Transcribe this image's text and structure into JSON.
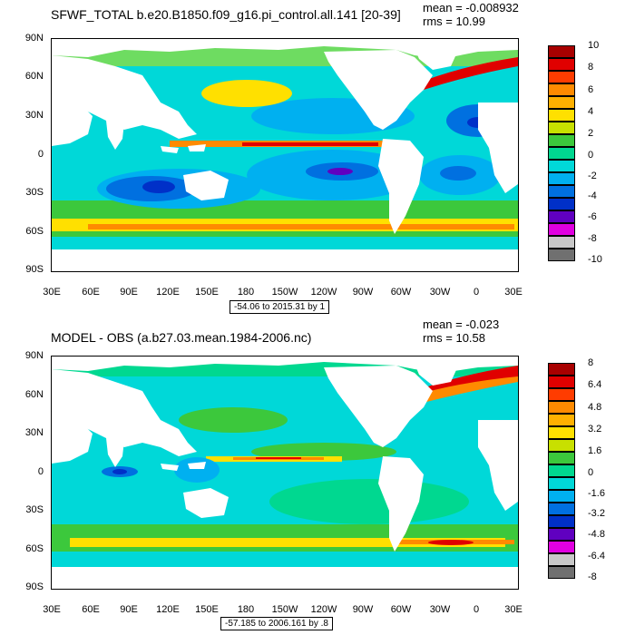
{
  "panels": [
    {
      "title": "SFWF_TOTAL b.e20.B1850.f09_g16.pi_control.all.141 [20-39]",
      "mean": "mean = -0.008932",
      "rms": "rms = 10.99",
      "range": "-54.06 to 2015.31 by 1",
      "lat_labels": [
        "90N",
        "60N",
        "30N",
        "0",
        "30S",
        "60S",
        "90S"
      ],
      "lon_labels": [
        "30E",
        "60E",
        "90E",
        "120E",
        "150E",
        "180",
        "150W",
        "120W",
        "90W",
        "60W",
        "30W",
        "0",
        "30E"
      ],
      "colorbar_labels": [
        "10",
        "8",
        "6",
        "4",
        "2",
        "0",
        "-2",
        "-4",
        "-6",
        "-8",
        "-10"
      ]
    },
    {
      "title": "MODEL - OBS (a.b27.03.mean.1984-2006.nc)",
      "mean": "mean = -0.023",
      "rms": "rms = 10.58",
      "range": "-57.185 to 2006.161 by .8",
      "lat_labels": [
        "90N",
        "60N",
        "30N",
        "0",
        "30S",
        "60S",
        "90S"
      ],
      "lon_labels": [
        "30E",
        "60E",
        "90E",
        "120E",
        "150E",
        "180",
        "150W",
        "120W",
        "90W",
        "60W",
        "30W",
        "0",
        "30E"
      ],
      "colorbar_labels": [
        "8",
        "6.4",
        "4.8",
        "3.2",
        "1.6",
        "0",
        "-1.6",
        "-3.2",
        "-4.8",
        "-6.4",
        "-8"
      ]
    }
  ],
  "colorbar_colors": [
    "#a80000",
    "#e00000",
    "#ff3c00",
    "#ff8a00",
    "#ffb000",
    "#ffe000",
    "#c8e000",
    "#3cc83c",
    "#00d890",
    "#00d8d8",
    "#00b0f0",
    "#0070e0",
    "#0030c8",
    "#6000c0",
    "#e000e0",
    "#c8c8c8",
    "#707070"
  ],
  "colors": {
    "land": "#ffffff",
    "ocean_base": "#00d8d8"
  }
}
